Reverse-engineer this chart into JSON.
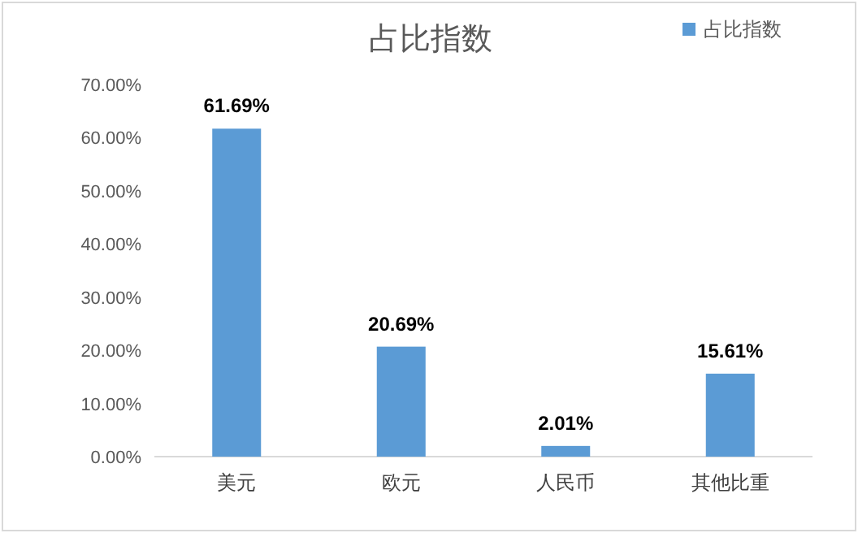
{
  "chart_data": {
    "type": "bar",
    "title": "占比指数",
    "categories": [
      "美元",
      "欧元",
      "人民币",
      "其他比重"
    ],
    "series": [
      {
        "name": "占比指数",
        "color": "#5b9bd5",
        "values": [
          61.69,
          20.69,
          2.01,
          15.61
        ],
        "value_labels": [
          "61.69%",
          "20.69%",
          "2.01%",
          "15.61%"
        ]
      }
    ],
    "ylim": [
      0,
      70
    ],
    "yticks": [
      {
        "value": 0,
        "label": "0.00%"
      },
      {
        "value": 10,
        "label": "10.00%"
      },
      {
        "value": 20,
        "label": "20.00%"
      },
      {
        "value": 30,
        "label": "30.00%"
      },
      {
        "value": 40,
        "label": "40.00%"
      },
      {
        "value": 50,
        "label": "50.00%"
      },
      {
        "value": 60,
        "label": "60.00%"
      },
      {
        "value": 70,
        "label": "70.00%"
      }
    ],
    "legend": "top right"
  }
}
